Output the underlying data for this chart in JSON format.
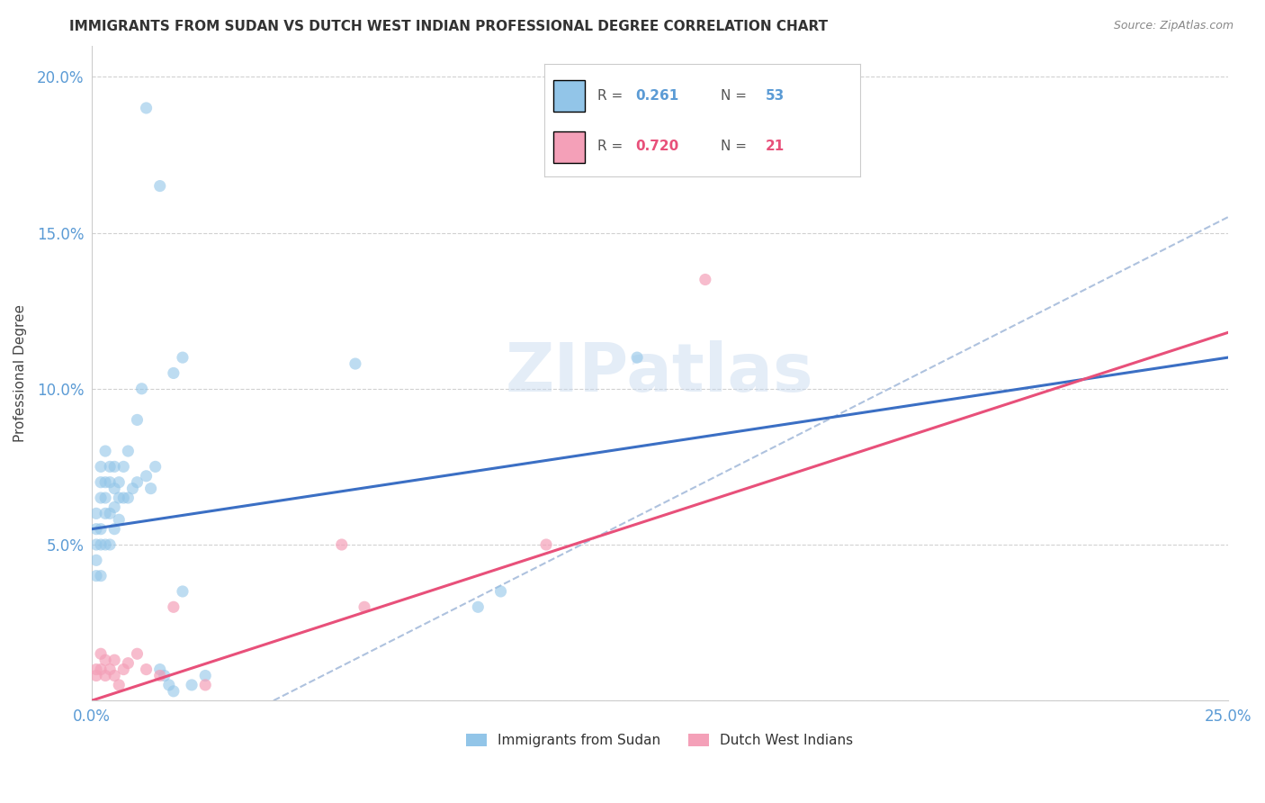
{
  "title": "IMMIGRANTS FROM SUDAN VS DUTCH WEST INDIAN PROFESSIONAL DEGREE CORRELATION CHART",
  "source": "Source: ZipAtlas.com",
  "ylabel": "Professional Degree",
  "xlim": [
    0.0,
    0.25
  ],
  "ylim": [
    0.0,
    0.21
  ],
  "x_ticks": [
    0.0,
    0.05,
    0.1,
    0.15,
    0.2,
    0.25
  ],
  "x_tick_labels": [
    "0.0%",
    "",
    "",
    "",
    "",
    "25.0%"
  ],
  "y_ticks": [
    0.0,
    0.05,
    0.1,
    0.15,
    0.2
  ],
  "y_tick_labels": [
    "",
    "5.0%",
    "10.0%",
    "15.0%",
    "20.0%"
  ],
  "blue_scatter_x": [
    0.001,
    0.001,
    0.001,
    0.001,
    0.001,
    0.002,
    0.002,
    0.002,
    0.002,
    0.002,
    0.002,
    0.003,
    0.003,
    0.003,
    0.003,
    0.003,
    0.004,
    0.004,
    0.004,
    0.004,
    0.005,
    0.005,
    0.005,
    0.005,
    0.006,
    0.006,
    0.006,
    0.007,
    0.007,
    0.008,
    0.008,
    0.009,
    0.01,
    0.01,
    0.011,
    0.012,
    0.013,
    0.014,
    0.015,
    0.016,
    0.017,
    0.018,
    0.02,
    0.022,
    0.025,
    0.012,
    0.015,
    0.018,
    0.02,
    0.058,
    0.09,
    0.12,
    0.085
  ],
  "blue_scatter_y": [
    0.06,
    0.055,
    0.05,
    0.045,
    0.04,
    0.075,
    0.07,
    0.065,
    0.055,
    0.05,
    0.04,
    0.08,
    0.07,
    0.065,
    0.06,
    0.05,
    0.075,
    0.07,
    0.06,
    0.05,
    0.075,
    0.068,
    0.062,
    0.055,
    0.07,
    0.065,
    0.058,
    0.075,
    0.065,
    0.08,
    0.065,
    0.068,
    0.09,
    0.07,
    0.1,
    0.072,
    0.068,
    0.075,
    0.01,
    0.008,
    0.005,
    0.003,
    0.035,
    0.005,
    0.008,
    0.19,
    0.165,
    0.105,
    0.11,
    0.108,
    0.035,
    0.11,
    0.03
  ],
  "pink_scatter_x": [
    0.001,
    0.001,
    0.002,
    0.002,
    0.003,
    0.003,
    0.004,
    0.005,
    0.005,
    0.006,
    0.007,
    0.008,
    0.01,
    0.012,
    0.015,
    0.018,
    0.025,
    0.055,
    0.06,
    0.1,
    0.135
  ],
  "pink_scatter_y": [
    0.01,
    0.008,
    0.015,
    0.01,
    0.013,
    0.008,
    0.01,
    0.013,
    0.008,
    0.005,
    0.01,
    0.012,
    0.015,
    0.01,
    0.008,
    0.03,
    0.005,
    0.05,
    0.03,
    0.05,
    0.135
  ],
  "blue_line_x0": 0.0,
  "blue_line_y0": 0.055,
  "blue_line_x1": 0.25,
  "blue_line_y1": 0.11,
  "pink_line_x0": 0.0,
  "pink_line_y0": 0.0,
  "pink_line_x1": 0.25,
  "pink_line_y1": 0.118,
  "dashed_line_x0": 0.04,
  "dashed_line_y0": 0.0,
  "dashed_line_x1": 0.25,
  "dashed_line_y1": 0.155,
  "blue_R": "0.261",
  "blue_N": "53",
  "pink_R": "0.720",
  "pink_N": "21",
  "blue_color": "#92C5E8",
  "pink_color": "#F4A0B8",
  "blue_line_color": "#3B6FC4",
  "pink_line_color": "#E8507A",
  "dashed_line_color": "#AABFDD",
  "text_color_blue": "#5B9BD5",
  "text_color_pink": "#E8507A",
  "legend_label_blue": "Immigrants from Sudan",
  "legend_label_pink": "Dutch West Indians",
  "watermark": "ZIPatlas",
  "background_color": "#FFFFFF",
  "grid_color": "#CCCCCC"
}
